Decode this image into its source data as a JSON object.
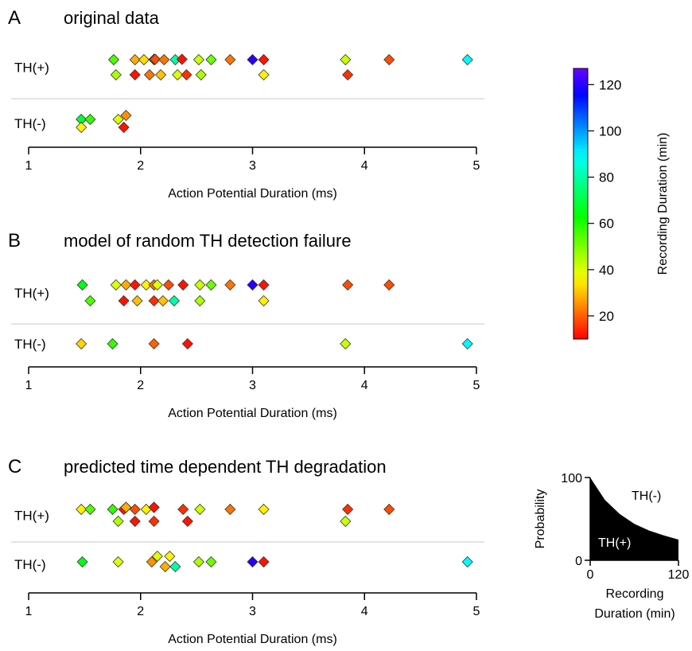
{
  "chart_data": [
    {
      "type": "scatter",
      "panel": "A",
      "title": "original data",
      "xlabel": "Action Potential Duration (ms)",
      "xlim": [
        1,
        5
      ],
      "xticks": [
        1,
        2,
        3,
        4,
        5
      ],
      "groups": [
        "TH(+)",
        "TH(-)"
      ],
      "points": {
        "TH(+)": [
          {
            "x": 1.76,
            "rec": 55
          },
          {
            "x": 1.78,
            "rec": 45
          },
          {
            "x": 1.95,
            "rec": 28
          },
          {
            "x": 1.95,
            "rec": 12
          },
          {
            "x": 2.03,
            "rec": 33
          },
          {
            "x": 2.08,
            "rec": 22
          },
          {
            "x": 2.12,
            "rec": 15
          },
          {
            "x": 2.12,
            "rec": 20
          },
          {
            "x": 2.13,
            "rec": 35
          },
          {
            "x": 2.13,
            "rec": 18
          },
          {
            "x": 2.18,
            "rec": 30
          },
          {
            "x": 2.21,
            "rec": 22
          },
          {
            "x": 2.31,
            "rec": 80
          },
          {
            "x": 2.33,
            "rec": 40
          },
          {
            "x": 2.37,
            "rec": 12
          },
          {
            "x": 2.41,
            "rec": 15
          },
          {
            "x": 2.52,
            "rec": 42
          },
          {
            "x": 2.54,
            "rec": 45
          },
          {
            "x": 2.63,
            "rec": 52
          },
          {
            "x": 2.8,
            "rec": 22
          },
          {
            "x": 3.0,
            "rec": 120
          },
          {
            "x": 3.1,
            "rec": 12
          },
          {
            "x": 3.1,
            "rec": 35
          },
          {
            "x": 3.83,
            "rec": 42
          },
          {
            "x": 3.85,
            "rec": 15
          },
          {
            "x": 4.22,
            "rec": 18
          },
          {
            "x": 4.92,
            "rec": 90
          }
        ],
        "TH(-)": [
          {
            "x": 1.47,
            "rec": 68
          },
          {
            "x": 1.47,
            "rec": 35
          },
          {
            "x": 1.55,
            "rec": 58
          },
          {
            "x": 1.8,
            "rec": 40
          },
          {
            "x": 1.85,
            "rec": 12
          },
          {
            "x": 1.87,
            "rec": 25
          }
        ]
      }
    },
    {
      "type": "scatter",
      "panel": "B",
      "title": "model of random TH detection failure",
      "xlabel": "Action Potential Duration (ms)",
      "xlim": [
        1,
        5
      ],
      "xticks": [
        1,
        2,
        3,
        4,
        5
      ],
      "groups": [
        "TH(+)",
        "TH(-)"
      ],
      "points": {
        "TH(+)": [
          {
            "x": 1.48,
            "rec": 65
          },
          {
            "x": 1.55,
            "rec": 55
          },
          {
            "x": 1.78,
            "rec": 40
          },
          {
            "x": 1.85,
            "rec": 12
          },
          {
            "x": 1.87,
            "rec": 28
          },
          {
            "x": 1.95,
            "rec": 12
          },
          {
            "x": 1.97,
            "rec": 30
          },
          {
            "x": 2.05,
            "rec": 35
          },
          {
            "x": 2.12,
            "rec": 15
          },
          {
            "x": 2.12,
            "rec": 22
          },
          {
            "x": 2.15,
            "rec": 40
          },
          {
            "x": 2.2,
            "rec": 30
          },
          {
            "x": 2.25,
            "rec": 18
          },
          {
            "x": 2.3,
            "rec": 80
          },
          {
            "x": 2.38,
            "rec": 12
          },
          {
            "x": 2.53,
            "rec": 42
          },
          {
            "x": 2.53,
            "rec": 45
          },
          {
            "x": 2.63,
            "rec": 52
          },
          {
            "x": 2.8,
            "rec": 22
          },
          {
            "x": 3.0,
            "rec": 120
          },
          {
            "x": 3.1,
            "rec": 12
          },
          {
            "x": 3.1,
            "rec": 35
          },
          {
            "x": 3.85,
            "rec": 18
          },
          {
            "x": 4.22,
            "rec": 18
          }
        ],
        "TH(-)": [
          {
            "x": 1.47,
            "rec": 32
          },
          {
            "x": 1.75,
            "rec": 58
          },
          {
            "x": 2.12,
            "rec": 20
          },
          {
            "x": 2.42,
            "rec": 12
          },
          {
            "x": 3.83,
            "rec": 42
          },
          {
            "x": 4.92,
            "rec": 90
          }
        ]
      }
    },
    {
      "type": "scatter",
      "panel": "C",
      "title": "predicted time dependent TH degradation",
      "xlabel": "Action Potential Duration (ms)",
      "xlim": [
        1,
        5
      ],
      "xticks": [
        1,
        2,
        3,
        4,
        5
      ],
      "groups": [
        "TH(+)",
        "TH(-)"
      ],
      "points": {
        "TH(+)": [
          {
            "x": 1.47,
            "rec": 35
          },
          {
            "x": 1.55,
            "rec": 55
          },
          {
            "x": 1.75,
            "rec": 58
          },
          {
            "x": 1.8,
            "rec": 45
          },
          {
            "x": 1.85,
            "rec": 12
          },
          {
            "x": 1.87,
            "rec": 22
          },
          {
            "x": 1.87,
            "rec": 28
          },
          {
            "x": 1.95,
            "rec": 18
          },
          {
            "x": 1.95,
            "rec": 12
          },
          {
            "x": 2.05,
            "rec": 35
          },
          {
            "x": 2.12,
            "rec": 15
          },
          {
            "x": 2.12,
            "rec": 30
          },
          {
            "x": 2.12,
            "rec": 12
          },
          {
            "x": 2.38,
            "rec": 15
          },
          {
            "x": 2.42,
            "rec": 12
          },
          {
            "x": 2.53,
            "rec": 42
          },
          {
            "x": 2.8,
            "rec": 22
          },
          {
            "x": 3.1,
            "rec": 35
          },
          {
            "x": 3.85,
            "rec": 15
          },
          {
            "x": 3.83,
            "rec": 42
          },
          {
            "x": 4.22,
            "rec": 18
          }
        ],
        "TH(-)": [
          {
            "x": 1.48,
            "rec": 65
          },
          {
            "x": 1.8,
            "rec": 40
          },
          {
            "x": 2.1,
            "rec": 25
          },
          {
            "x": 2.15,
            "rec": 40
          },
          {
            "x": 2.22,
            "rec": 28
          },
          {
            "x": 2.26,
            "rec": 35
          },
          {
            "x": 2.31,
            "rec": 80
          },
          {
            "x": 2.52,
            "rec": 45
          },
          {
            "x": 2.63,
            "rec": 52
          },
          {
            "x": 3.0,
            "rec": 120
          },
          {
            "x": 3.1,
            "rec": 12
          },
          {
            "x": 4.92,
            "rec": 90
          }
        ]
      }
    },
    {
      "type": "colorbar",
      "title": "Recording Duration (min)",
      "range": [
        10,
        127
      ],
      "ticks": [
        20,
        40,
        60,
        80,
        100,
        120
      ],
      "colormap": "rainbow (red low → violet high)"
    },
    {
      "type": "area",
      "title": "",
      "xlabel": "Recording Duration (min)",
      "ylabel": "Probability",
      "xlim": [
        0,
        120
      ],
      "ylim": [
        0,
        100
      ],
      "xticks": [
        0,
        120
      ],
      "yticks": [
        0,
        100
      ],
      "regions": [
        "TH(+)",
        "TH(-)"
      ],
      "curve": {
        "x": [
          0,
          20,
          40,
          60,
          80,
          100,
          120
        ],
        "y": [
          100,
          73,
          56,
          44,
          36,
          30,
          25
        ]
      },
      "fill_color": "#000000"
    }
  ]
}
